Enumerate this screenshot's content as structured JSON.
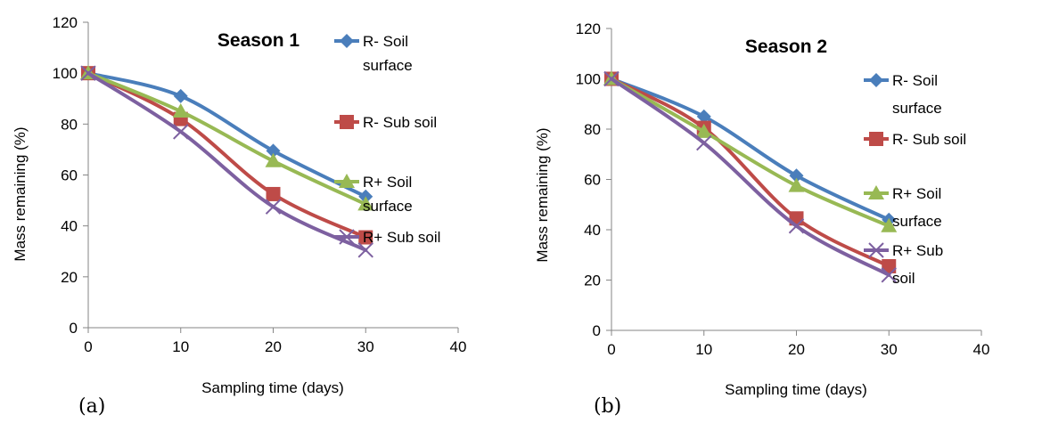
{
  "chart_data": [
    {
      "type": "line",
      "panel_label": "(a)",
      "title": "Season 1",
      "xlabel": "Sampling time (days)",
      "ylabel": "Mass remaining (%)",
      "xlim": [
        0,
        40
      ],
      "ylim": [
        0,
        120
      ],
      "x_ticks": [
        "0",
        "10",
        "20",
        "30",
        "40"
      ],
      "y_ticks": [
        "0",
        "20",
        "40",
        "60",
        "80",
        "100",
        "120"
      ],
      "grid": false,
      "legend_position": "right",
      "x": [
        0,
        10,
        20,
        30
      ],
      "series": [
        {
          "name": "R- Soil surface",
          "legend_lines": [
            "R- Soil",
            "surface"
          ],
          "values": [
            100,
            91,
            69.5,
            51.5
          ],
          "color": "#4a7ebb",
          "marker": "diamond"
        },
        {
          "name": "R- Sub soil",
          "legend_lines": [
            "R- Sub soil"
          ],
          "values": [
            100,
            82,
            52.5,
            35.5
          ],
          "color": "#be4b48",
          "marker": "square"
        },
        {
          "name": "R+ Soil surface",
          "legend_lines": [
            "R+ Soil",
            "surface"
          ],
          "values": [
            100,
            85,
            65.5,
            48.5
          ],
          "color": "#98b954",
          "marker": "triangle"
        },
        {
          "name": "R+ Sub soil",
          "legend_lines": [
            "R+ Sub soil"
          ],
          "values": [
            100,
            77,
            47.5,
            30.5
          ],
          "color": "#7d60a0",
          "marker": "x"
        }
      ]
    },
    {
      "type": "line",
      "panel_label": "(b)",
      "title": "Season 2",
      "xlabel": "Sampling time (days)",
      "ylabel": "Mass remaining (%)",
      "xlim": [
        0,
        40
      ],
      "ylim": [
        0,
        120
      ],
      "x_ticks": [
        "0",
        "10",
        "20",
        "30",
        "40"
      ],
      "y_ticks": [
        "0",
        "20",
        "40",
        "60",
        "80",
        "100",
        "120"
      ],
      "grid": false,
      "legend_position": "right",
      "x": [
        0,
        10,
        20,
        30
      ],
      "series": [
        {
          "name": "R- Soil surface",
          "legend_lines": [
            "R- Soil",
            "surface"
          ],
          "values": [
            100,
            85,
            61.5,
            44
          ],
          "color": "#4a7ebb",
          "marker": "diamond"
        },
        {
          "name": "R- Sub soil",
          "legend_lines": [
            "R- Sub soil"
          ],
          "values": [
            100,
            80.5,
            44.5,
            25.5
          ],
          "color": "#be4b48",
          "marker": "square"
        },
        {
          "name": "R+ Soil surface",
          "legend_lines": [
            "R+ Soil",
            "surface"
          ],
          "values": [
            100,
            79,
            57.5,
            41.5
          ],
          "color": "#98b954",
          "marker": "triangle"
        },
        {
          "name": "R+ Sub soil",
          "legend_lines": [
            "R+ Sub",
            "soil"
          ],
          "values": [
            100,
            74.5,
            41.5,
            22
          ],
          "color": "#7d60a0",
          "marker": "x"
        }
      ]
    }
  ]
}
